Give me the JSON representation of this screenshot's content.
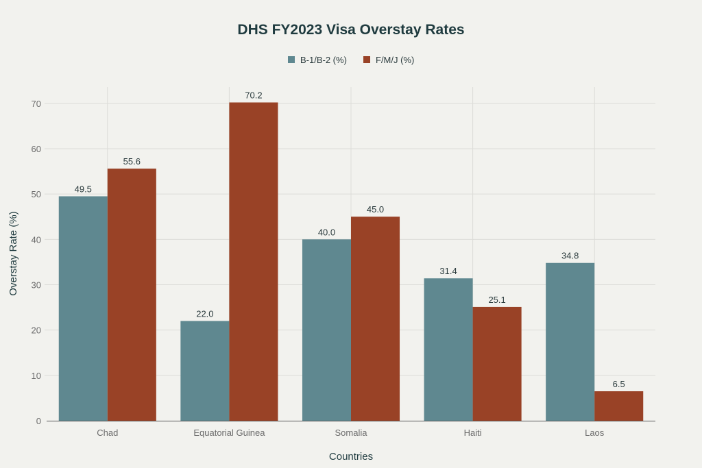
{
  "chart_data": {
    "type": "bar",
    "title": "DHS FY2023 Visa Overstay Rates",
    "xlabel": "Countries",
    "ylabel": "Overstay Rate (%)",
    "categories": [
      "Chad",
      "Equatorial Guinea",
      "Somalia",
      "Haiti",
      "Laos"
    ],
    "series": [
      {
        "name": "B-1/B-2 (%)",
        "color": "#5f8890",
        "values": [
          49.5,
          22.0,
          40.0,
          31.4,
          34.8
        ],
        "labels": [
          "49.5",
          "22.0",
          "40.0",
          "31.4",
          "34.8"
        ]
      },
      {
        "name": "F/M/J (%)",
        "color": "#994226",
        "values": [
          55.6,
          70.2,
          45.0,
          25.1,
          6.5
        ],
        "labels": [
          "55.6",
          "70.2",
          "45.0",
          "25.1",
          "6.5"
        ]
      }
    ],
    "yticks": [
      "0",
      "10",
      "20",
      "30",
      "40",
      "50",
      "60",
      "70"
    ],
    "ylim": [
      0,
      73.6
    ],
    "grid": true,
    "legend_position": "top-center"
  }
}
